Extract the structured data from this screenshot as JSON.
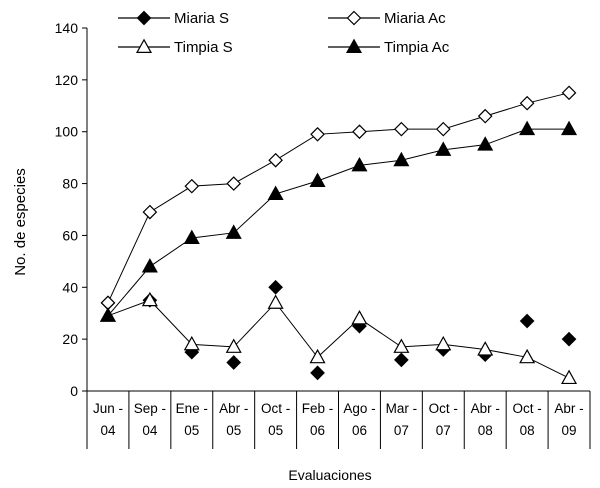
{
  "chart_data": {
    "type": "line",
    "title": "",
    "xlabel": "Evaluaciones",
    "ylabel": "No. de especies",
    "ylim": [
      0,
      140
    ],
    "yticks": [
      0,
      20,
      40,
      60,
      80,
      100,
      120,
      140
    ],
    "grid": false,
    "legend_position": "top",
    "categories": [
      [
        "Jun -",
        "04"
      ],
      [
        "Sep -",
        "04"
      ],
      [
        "Ene -",
        "05"
      ],
      [
        "Abr -",
        "05"
      ],
      [
        "Oct -",
        "05"
      ],
      [
        "Feb -",
        "06"
      ],
      [
        "Ago -",
        "06"
      ],
      [
        "Mar -",
        "07"
      ],
      [
        "Oct -",
        "07"
      ],
      [
        "Abr -",
        "08"
      ],
      [
        "Oct -",
        "08"
      ],
      [
        "Abr -",
        "09"
      ]
    ],
    "series": [
      {
        "name": "Miaria S",
        "marker": "diamond",
        "fill": "#000000",
        "line": false,
        "values": [
          34,
          35,
          15,
          11,
          40,
          7,
          25,
          12,
          16,
          14,
          27,
          20
        ]
      },
      {
        "name": "Miaria Ac",
        "marker": "diamond",
        "fill": "#ffffff",
        "line": true,
        "values": [
          34,
          69,
          79,
          80,
          89,
          99,
          100,
          101,
          101,
          106,
          111,
          115
        ]
      },
      {
        "name": "Timpia S",
        "marker": "triangle",
        "fill": "#ffffff",
        "line": true,
        "values": [
          29,
          35,
          18,
          17,
          34,
          13,
          28,
          17,
          18,
          16,
          13,
          5
        ]
      },
      {
        "name": "Timpia Ac",
        "marker": "triangle",
        "fill": "#000000",
        "line": true,
        "values": [
          29,
          48,
          59,
          61,
          76,
          81,
          87,
          89,
          93,
          95,
          101,
          101
        ]
      }
    ]
  }
}
